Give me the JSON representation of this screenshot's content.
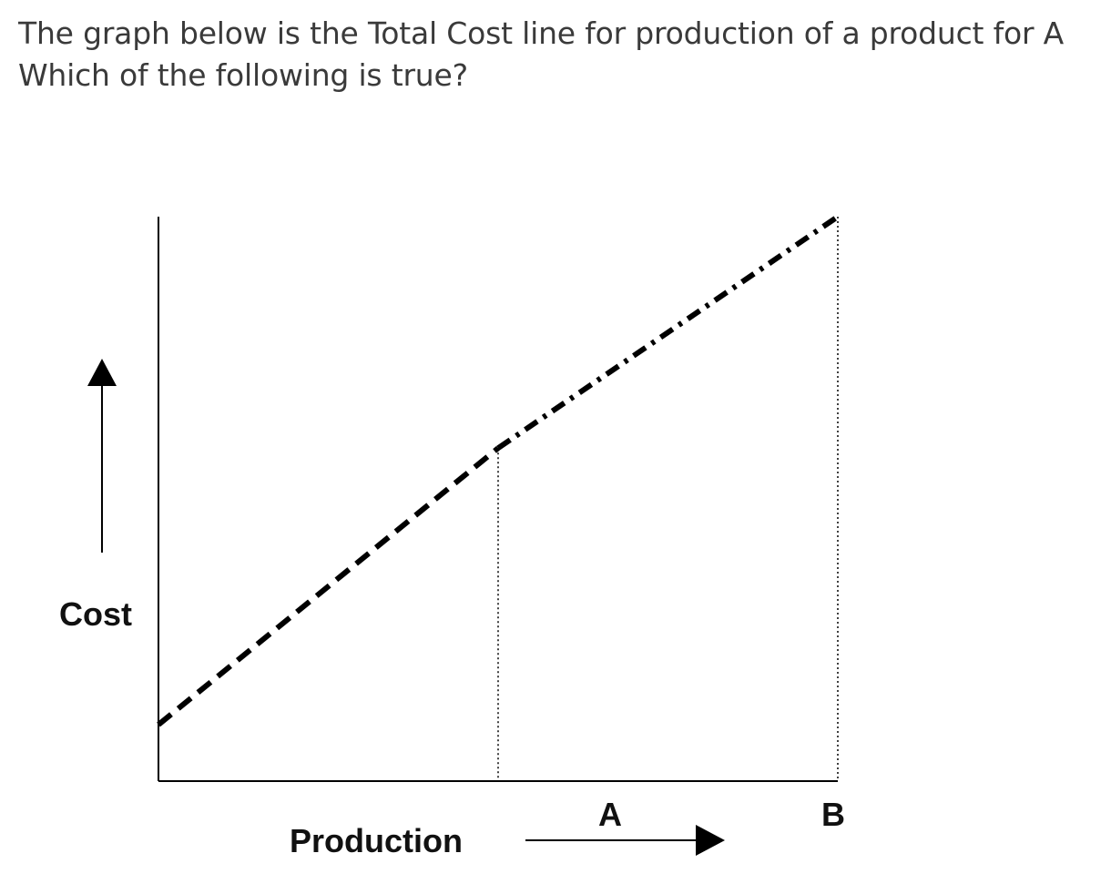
{
  "question": {
    "line1": "The graph below is the Total Cost line for production of a product for A",
    "line2": "Which of the following is true?"
  },
  "chart_data": {
    "type": "line",
    "ylabel": "Cost",
    "xlabel": "Production",
    "x_ticks": [
      {
        "label": "A",
        "x": 1
      },
      {
        "label": "B",
        "x": 2
      }
    ],
    "xlim": [
      0,
      2
    ],
    "ylim": [
      0,
      10
    ],
    "series": [
      {
        "style": "dashed",
        "x": [
          0,
          1
        ],
        "y": [
          1.0,
          5.9
        ]
      },
      {
        "style": "dash-dot",
        "x": [
          1,
          2
        ],
        "y": [
          5.9,
          10.0
        ]
      }
    ],
    "reference_lines": [
      {
        "axis": "x",
        "at": 1,
        "style": "dotted"
      },
      {
        "axis": "x",
        "at": 2,
        "style": "dotted"
      }
    ],
    "grid": false,
    "colors": {
      "line": "#000000",
      "text": "#111111",
      "question_text": "#3a3a3a"
    }
  }
}
